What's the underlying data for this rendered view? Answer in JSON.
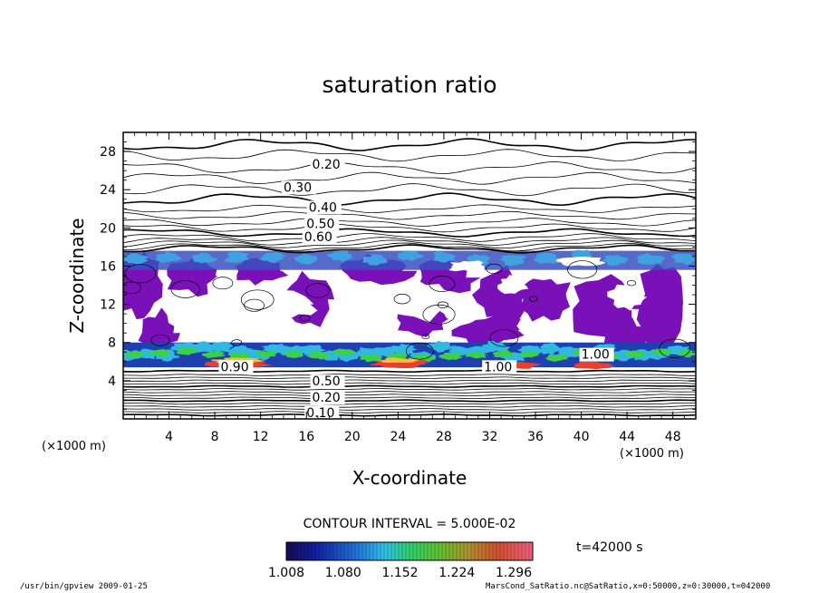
{
  "chart_data": {
    "type": "heatmap",
    "title": "saturation ratio",
    "xlabel": "X-coordinate",
    "ylabel": "Z-coordinate",
    "x_unit": "(×1000 m)",
    "y_unit": "(×1000 m)",
    "xlim": [
      0,
      50
    ],
    "ylim": [
      0,
      30
    ],
    "x_ticks": [
      "4",
      "8",
      "12",
      "16",
      "20",
      "24",
      "28",
      "32",
      "36",
      "40",
      "44",
      "48"
    ],
    "y_ticks": [
      "4",
      "8",
      "12",
      "16",
      "20",
      "24",
      "28"
    ],
    "contour_labels": [
      {
        "text": "0.20",
        "x": 16.5,
        "y": 26.2
      },
      {
        "text": "0.30",
        "x": 14.0,
        "y": 23.8
      },
      {
        "text": "0.40",
        "x": 16.2,
        "y": 21.7
      },
      {
        "text": "0.50",
        "x": 16.0,
        "y": 20.0
      },
      {
        "text": "0.60",
        "x": 15.8,
        "y": 18.6
      },
      {
        "text": "1.00",
        "x": 40.0,
        "y": 6.3
      },
      {
        "text": "1.00",
        "x": 31.5,
        "y": 5.0
      },
      {
        "text": "0.90",
        "x": 8.5,
        "y": 5.0
      },
      {
        "text": "0.50",
        "x": 16.5,
        "y": 3.5
      },
      {
        "text": "0.20",
        "x": 16.5,
        "y": 1.8
      },
      {
        "text": "0.10",
        "x": 16.0,
        "y": 0.2
      }
    ],
    "contour_interval_label": "CONTOUR INTERVAL = 5.000E-02",
    "colorbar": {
      "ticks": [
        "1.008",
        "1.080",
        "1.152",
        "1.224",
        "1.296"
      ],
      "min": 1.008,
      "max": 1.32
    },
    "time_label": "t=42000 s"
  },
  "footer": {
    "left": "/usr/bin/gpview  2009-01-25",
    "right": "MarsCond_SatRatio.nc@SatRatio,x=0:50000,z=0:30000,t=042000"
  },
  "colors": {
    "fill": "#7a10b8",
    "low": "#1e2a8c",
    "mid": "#2bb5e0",
    "high_green": "#3ad04a",
    "peak": "#e8402a"
  }
}
